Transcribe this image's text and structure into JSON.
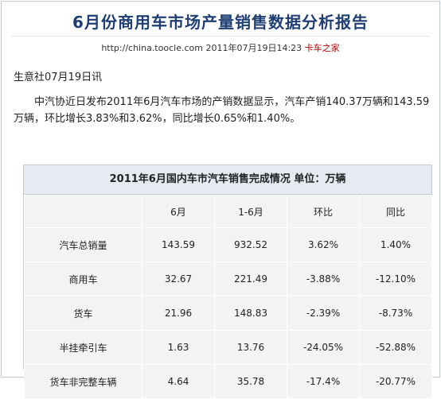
{
  "page": {
    "title": "6月份商用车市场产量销售数据分析报告",
    "url": "http://china.toocle.com",
    "datetime": "2011年07月19日14:23",
    "source": "卡车之家",
    "lead": "生意社07月19日讯",
    "paragraph": "中汽协近日发布2011年6月汽车市场的产销数据显示，汽车产销140.37万辆和143.59万辆，环比增长3.83%和3.62%，同比增长0.65%和1.40%。"
  },
  "table": {
    "caption": "2011年6月国内车市汽车销售完成情况 单位：万辆",
    "columns": [
      "",
      "6月",
      "1-6月",
      "环比",
      "同比"
    ],
    "rows": [
      [
        "汽车总销量",
        "143.59",
        "932.52",
        "3.62%",
        "1.40%"
      ],
      [
        "商用车",
        "32.67",
        "221.49",
        "-3.88%",
        "-12.10%"
      ],
      [
        "货车",
        "21.96",
        "148.83",
        "-2.39%",
        "-8.73%"
      ],
      [
        "半挂牵引车",
        "1.63",
        "13.76",
        "-24.05%",
        "-52.88%"
      ],
      [
        "货车非完整车辆",
        "4.64",
        "35.78",
        "-17.4%",
        "-20.77%"
      ]
    ]
  }
}
